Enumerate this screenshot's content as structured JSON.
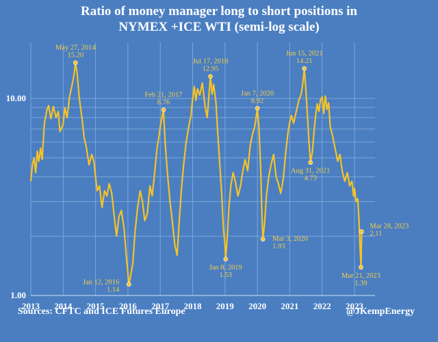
{
  "chart_data": {
    "type": "line",
    "title_line1": "Ratio of money manager long to short positions in",
    "title_line2": "NYMEX +ICE WTI (semi-log scale)",
    "y_scale": "log",
    "ylim": [
      1.0,
      20.0
    ],
    "y_ticks": [
      {
        "value": 10.0,
        "label": "10.00"
      },
      {
        "value": 1.0,
        "label": "1.00"
      }
    ],
    "xlim": [
      2013.0,
      2023.35
    ],
    "x_ticks": [
      {
        "value": 2013,
        "label": "2013"
      },
      {
        "value": 2014,
        "label": "2014"
      },
      {
        "value": 2015,
        "label": "2015"
      },
      {
        "value": 2016,
        "label": "2016"
      },
      {
        "value": 2017,
        "label": "2017"
      },
      {
        "value": 2018,
        "label": "2018"
      },
      {
        "value": 2019,
        "label": "2019"
      },
      {
        "value": 2020,
        "label": "2020"
      },
      {
        "value": 2021,
        "label": "2021"
      },
      {
        "value": 2022,
        "label": "2022"
      },
      {
        "value": 2023,
        "label": "2023"
      }
    ],
    "grid": true,
    "line_color": "#f7c325",
    "background": "#4a7ec1",
    "series": [
      {
        "points": [
          [
            2013.0,
            3.8
          ],
          [
            2013.05,
            4.6
          ],
          [
            2013.1,
            5.0
          ],
          [
            2013.15,
            4.2
          ],
          [
            2013.2,
            5.4
          ],
          [
            2013.25,
            4.8
          ],
          [
            2013.3,
            5.6
          ],
          [
            2013.35,
            4.9
          ],
          [
            2013.42,
            7.5
          ],
          [
            2013.5,
            8.8
          ],
          [
            2013.55,
            9.2
          ],
          [
            2013.62,
            7.9
          ],
          [
            2013.7,
            9.1
          ],
          [
            2013.78,
            8.0
          ],
          [
            2013.85,
            8.6
          ],
          [
            2013.9,
            6.8
          ],
          [
            2014.0,
            7.4
          ],
          [
            2014.05,
            9.0
          ],
          [
            2014.12,
            8.0
          ],
          [
            2014.2,
            10.3
          ],
          [
            2014.28,
            11.8
          ],
          [
            2014.33,
            13.0
          ],
          [
            2014.38,
            15.2
          ],
          [
            2014.43,
            13.5
          ],
          [
            2014.5,
            10.0
          ],
          [
            2014.58,
            8.0
          ],
          [
            2014.65,
            6.3
          ],
          [
            2014.72,
            5.6
          ],
          [
            2014.8,
            4.6
          ],
          [
            2014.88,
            5.2
          ],
          [
            2014.95,
            4.8
          ],
          [
            2015.0,
            4.0
          ],
          [
            2015.05,
            3.4
          ],
          [
            2015.12,
            3.6
          ],
          [
            2015.2,
            2.8
          ],
          [
            2015.28,
            3.4
          ],
          [
            2015.35,
            3.2
          ],
          [
            2015.42,
            3.7
          ],
          [
            2015.5,
            3.3
          ],
          [
            2015.58,
            2.5
          ],
          [
            2015.65,
            2.0
          ],
          [
            2015.72,
            2.5
          ],
          [
            2015.8,
            2.7
          ],
          [
            2015.88,
            2.2
          ],
          [
            2015.95,
            1.6
          ],
          [
            2016.0,
            1.3
          ],
          [
            2016.03,
            1.14
          ],
          [
            2016.08,
            1.25
          ],
          [
            2016.15,
            1.45
          ],
          [
            2016.22,
            2.1
          ],
          [
            2016.3,
            2.8
          ],
          [
            2016.38,
            3.4
          ],
          [
            2016.45,
            3.0
          ],
          [
            2016.52,
            2.4
          ],
          [
            2016.6,
            2.6
          ],
          [
            2016.68,
            3.6
          ],
          [
            2016.75,
            3.2
          ],
          [
            2016.82,
            4.1
          ],
          [
            2016.9,
            5.6
          ],
          [
            2016.97,
            6.6
          ],
          [
            2017.0,
            7.2
          ],
          [
            2017.05,
            8.0
          ],
          [
            2017.1,
            8.76
          ],
          [
            2017.15,
            6.0
          ],
          [
            2017.22,
            4.2
          ],
          [
            2017.3,
            3.0
          ],
          [
            2017.38,
            2.3
          ],
          [
            2017.45,
            1.8
          ],
          [
            2017.52,
            1.6
          ],
          [
            2017.58,
            2.3
          ],
          [
            2017.65,
            3.4
          ],
          [
            2017.72,
            4.6
          ],
          [
            2017.8,
            6.0
          ],
          [
            2017.88,
            7.2
          ],
          [
            2017.95,
            8.2
          ],
          [
            2018.0,
            10.0
          ],
          [
            2018.05,
            11.5
          ],
          [
            2018.1,
            9.8
          ],
          [
            2018.15,
            11.2
          ],
          [
            2018.22,
            10.4
          ],
          [
            2018.3,
            12.0
          ],
          [
            2018.38,
            9.2
          ],
          [
            2018.45,
            8.0
          ],
          [
            2018.5,
            10.2
          ],
          [
            2018.55,
            12.95
          ],
          [
            2018.6,
            10.5
          ],
          [
            2018.65,
            11.8
          ],
          [
            2018.72,
            9.5
          ],
          [
            2018.78,
            6.5
          ],
          [
            2018.84,
            4.6
          ],
          [
            2018.9,
            3.2
          ],
          [
            2018.95,
            2.2
          ],
          [
            2019.0,
            1.8
          ],
          [
            2019.02,
            1.53
          ],
          [
            2019.07,
            2.0
          ],
          [
            2019.12,
            2.8
          ],
          [
            2019.18,
            3.6
          ],
          [
            2019.25,
            4.2
          ],
          [
            2019.32,
            3.8
          ],
          [
            2019.4,
            3.2
          ],
          [
            2019.48,
            3.6
          ],
          [
            2019.55,
            4.3
          ],
          [
            2019.62,
            4.9
          ],
          [
            2019.7,
            4.3
          ],
          [
            2019.78,
            5.8
          ],
          [
            2019.85,
            6.6
          ],
          [
            2019.92,
            7.2
          ],
          [
            2020.0,
            8.92
          ],
          [
            2020.05,
            7.0
          ],
          [
            2020.1,
            4.5
          ],
          [
            2020.14,
            2.6
          ],
          [
            2020.17,
            1.93
          ],
          [
            2020.22,
            2.3
          ],
          [
            2020.28,
            3.2
          ],
          [
            2020.35,
            4.0
          ],
          [
            2020.42,
            4.6
          ],
          [
            2020.5,
            5.2
          ],
          [
            2020.58,
            4.0
          ],
          [
            2020.65,
            3.7
          ],
          [
            2020.72,
            3.3
          ],
          [
            2020.8,
            3.9
          ],
          [
            2020.88,
            5.4
          ],
          [
            2020.95,
            6.8
          ],
          [
            2021.0,
            7.6
          ],
          [
            2021.05,
            8.2
          ],
          [
            2021.12,
            7.5
          ],
          [
            2021.2,
            8.6
          ],
          [
            2021.28,
            9.8
          ],
          [
            2021.35,
            10.5
          ],
          [
            2021.4,
            11.8
          ],
          [
            2021.45,
            14.21
          ],
          [
            2021.5,
            11.0
          ],
          [
            2021.55,
            8.0
          ],
          [
            2021.6,
            5.8
          ],
          [
            2021.64,
            4.73
          ],
          [
            2021.7,
            5.4
          ],
          [
            2021.75,
            6.8
          ],
          [
            2021.8,
            8.2
          ],
          [
            2021.85,
            9.4
          ],
          [
            2021.9,
            8.6
          ],
          [
            2021.95,
            9.8
          ],
          [
            2022.0,
            10.2
          ],
          [
            2022.05,
            8.4
          ],
          [
            2022.1,
            10.3
          ],
          [
            2022.15,
            8.8
          ],
          [
            2022.2,
            9.5
          ],
          [
            2022.25,
            7.2
          ],
          [
            2022.32,
            6.5
          ],
          [
            2022.4,
            5.6
          ],
          [
            2022.48,
            4.8
          ],
          [
            2022.55,
            5.2
          ],
          [
            2022.62,
            4.3
          ],
          [
            2022.7,
            3.8
          ],
          [
            2022.78,
            4.2
          ],
          [
            2022.85,
            3.6
          ],
          [
            2022.92,
            3.8
          ],
          [
            2022.97,
            3.2
          ],
          [
            2023.0,
            3.5
          ],
          [
            2023.05,
            3.0
          ],
          [
            2023.1,
            3.1
          ],
          [
            2023.14,
            2.4
          ],
          [
            2023.17,
            1.8
          ],
          [
            2023.2,
            1.39
          ],
          [
            2023.22,
            2.11
          ]
        ]
      }
    ],
    "annotations": [
      {
        "x": 2014.38,
        "y": 15.2,
        "date": "May 27, 2014",
        "value": "15.20",
        "pos": "above"
      },
      {
        "x": 2016.03,
        "y": 1.14,
        "date": "Jan 12, 2016",
        "value": "1.14",
        "pos": "below-left"
      },
      {
        "x": 2017.1,
        "y": 8.76,
        "date": "Feb 21, 2017",
        "value": "8.76",
        "pos": "above"
      },
      {
        "x": 2018.55,
        "y": 12.95,
        "date": "Jul 17, 2018",
        "value": "12.95",
        "pos": "above"
      },
      {
        "x": 2019.02,
        "y": 1.53,
        "date": "Jan 8, 2019",
        "value": "1.53",
        "pos": "below"
      },
      {
        "x": 2020.0,
        "y": 8.92,
        "date": "Jan 7, 2020",
        "value": "8.92",
        "pos": "above"
      },
      {
        "x": 2020.17,
        "y": 1.93,
        "date": "Mar 3, 2020",
        "value": "1.93",
        "pos": "right"
      },
      {
        "x": 2021.45,
        "y": 14.21,
        "date": "Jun 15, 2021",
        "value": "14.21",
        "pos": "above"
      },
      {
        "x": 2021.64,
        "y": 4.73,
        "date": "Aug 31, 2021",
        "value": "4.73",
        "pos": "below"
      },
      {
        "x": 2023.2,
        "y": 1.39,
        "date": "Mar 21, 2023",
        "value": "1.39",
        "pos": "below"
      },
      {
        "x": 2023.22,
        "y": 2.11,
        "date": "Mar 28, 2023",
        "value": "2.11",
        "pos": "right-up"
      }
    ]
  },
  "footer": {
    "source": "Sources: CFTC and ICE Futures Europe",
    "credit": "@JKempEnergy"
  }
}
